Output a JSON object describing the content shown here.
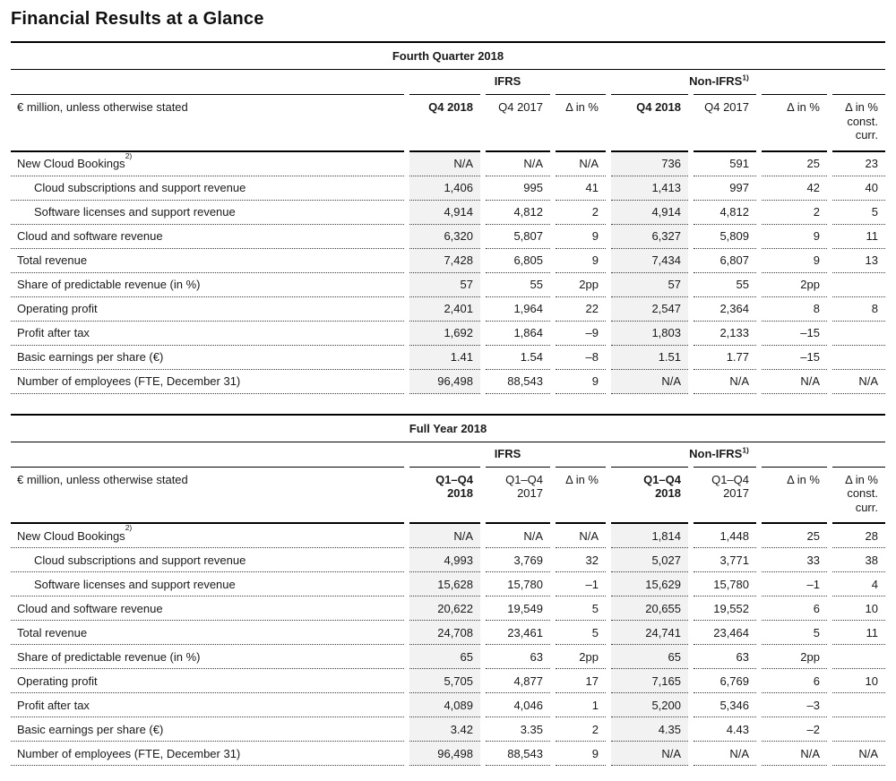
{
  "page_title": "Financial Results at a Glance",
  "colors": {
    "shade": "#f2f2f2",
    "text": "#1a1a1a",
    "rule": "#000000"
  },
  "tables": [
    {
      "period_title": "Fourth Quarter 2018",
      "unit_note": "€ million, unless otherwise stated",
      "group_headers": [
        {
          "label": "IFRS",
          "sup": ""
        },
        {
          "label": "Non-IFRS",
          "sup": "1)"
        }
      ],
      "column_headers": [
        {
          "lines": [
            "Q4 2018"
          ],
          "bold": true
        },
        {
          "lines": [
            "Q4 2017"
          ],
          "bold": false
        },
        {
          "lines": [
            "Δ in %"
          ],
          "bold": false
        },
        {
          "lines": [
            "Q4 2018"
          ],
          "bold": true
        },
        {
          "lines": [
            "Q4 2017"
          ],
          "bold": false
        },
        {
          "lines": [
            "Δ in %"
          ],
          "bold": false
        },
        {
          "lines": [
            "Δ in %",
            "const.",
            "curr."
          ],
          "bold": false
        }
      ],
      "rows": [
        {
          "label": "New Cloud Bookings",
          "sup": "2)",
          "indent": false,
          "values": [
            "N/A",
            "N/A",
            "N/A",
            "736",
            "591",
            "25",
            "23"
          ]
        },
        {
          "label": "Cloud subscriptions and support revenue",
          "sup": "",
          "indent": true,
          "values": [
            "1,406",
            "995",
            "41",
            "1,413",
            "997",
            "42",
            "40"
          ]
        },
        {
          "label": "Software licenses and support revenue",
          "sup": "",
          "indent": true,
          "values": [
            "4,914",
            "4,812",
            "2",
            "4,914",
            "4,812",
            "2",
            "5"
          ]
        },
        {
          "label": "Cloud and software revenue",
          "sup": "",
          "indent": false,
          "values": [
            "6,320",
            "5,807",
            "9",
            "6,327",
            "5,809",
            "9",
            "11"
          ]
        },
        {
          "label": "Total revenue",
          "sup": "",
          "indent": false,
          "values": [
            "7,428",
            "6,805",
            "9",
            "7,434",
            "6,807",
            "9",
            "13"
          ]
        },
        {
          "label": "Share of predictable revenue (in %)",
          "sup": "",
          "indent": false,
          "values": [
            "57",
            "55",
            "2pp",
            "57",
            "55",
            "2pp",
            ""
          ]
        },
        {
          "label": "Operating profit",
          "sup": "",
          "indent": false,
          "values": [
            "2,401",
            "1,964",
            "22",
            "2,547",
            "2,364",
            "8",
            "8"
          ]
        },
        {
          "label": "Profit after tax",
          "sup": "",
          "indent": false,
          "values": [
            "1,692",
            "1,864",
            "–9",
            "1,803",
            "2,133",
            "–15",
            ""
          ]
        },
        {
          "label": "Basic earnings per share (€)",
          "sup": "",
          "indent": false,
          "values": [
            "1.41",
            "1.54",
            "–8",
            "1.51",
            "1.77",
            "–15",
            ""
          ]
        },
        {
          "label": "Number of employees (FTE, December 31)",
          "sup": "",
          "indent": false,
          "values": [
            "96,498",
            "88,543",
            "9",
            "N/A",
            "N/A",
            "N/A",
            "N/A"
          ]
        }
      ]
    },
    {
      "period_title": "Full Year 2018",
      "unit_note": "€ million, unless otherwise stated",
      "group_headers": [
        {
          "label": "IFRS",
          "sup": ""
        },
        {
          "label": "Non-IFRS",
          "sup": "1)"
        }
      ],
      "column_headers": [
        {
          "lines": [
            "Q1–Q4",
            "2018"
          ],
          "bold": true
        },
        {
          "lines": [
            "Q1–Q4",
            "2017"
          ],
          "bold": false
        },
        {
          "lines": [
            "Δ in %"
          ],
          "bold": false
        },
        {
          "lines": [
            "Q1–Q4",
            "2018"
          ],
          "bold": true
        },
        {
          "lines": [
            "Q1–Q4",
            "2017"
          ],
          "bold": false
        },
        {
          "lines": [
            "Δ in %"
          ],
          "bold": false
        },
        {
          "lines": [
            "Δ in %",
            "const.",
            "curr."
          ],
          "bold": false
        }
      ],
      "rows": [
        {
          "label": "New Cloud Bookings",
          "sup": "2)",
          "indent": false,
          "values": [
            "N/A",
            "N/A",
            "N/A",
            "1,814",
            "1,448",
            "25",
            "28"
          ]
        },
        {
          "label": "Cloud subscriptions and support revenue",
          "sup": "",
          "indent": true,
          "values": [
            "4,993",
            "3,769",
            "32",
            "5,027",
            "3,771",
            "33",
            "38"
          ]
        },
        {
          "label": "Software licenses and support revenue",
          "sup": "",
          "indent": true,
          "values": [
            "15,628",
            "15,780",
            "–1",
            "15,629",
            "15,780",
            "–1",
            "4"
          ]
        },
        {
          "label": "Cloud and software revenue",
          "sup": "",
          "indent": false,
          "values": [
            "20,622",
            "19,549",
            "5",
            "20,655",
            "19,552",
            "6",
            "10"
          ]
        },
        {
          "label": "Total revenue",
          "sup": "",
          "indent": false,
          "values": [
            "24,708",
            "23,461",
            "5",
            "24,741",
            "23,464",
            "5",
            "11"
          ]
        },
        {
          "label": "Share of predictable revenue (in %)",
          "sup": "",
          "indent": false,
          "values": [
            "65",
            "63",
            "2pp",
            "65",
            "63",
            "2pp",
            ""
          ]
        },
        {
          "label": "Operating profit",
          "sup": "",
          "indent": false,
          "values": [
            "5,705",
            "4,877",
            "17",
            "7,165",
            "6,769",
            "6",
            "10"
          ]
        },
        {
          "label": "Profit after tax",
          "sup": "",
          "indent": false,
          "values": [
            "4,089",
            "4,046",
            "1",
            "5,200",
            "5,346",
            "–3",
            ""
          ]
        },
        {
          "label": "Basic earnings per share (€)",
          "sup": "",
          "indent": false,
          "values": [
            "3.42",
            "3.35",
            "2",
            "4.35",
            "4.43",
            "–2",
            ""
          ]
        },
        {
          "label": "Number of employees (FTE, December 31)",
          "sup": "",
          "indent": false,
          "values": [
            "96,498",
            "88,543",
            "9",
            "N/A",
            "N/A",
            "N/A",
            "N/A"
          ]
        }
      ]
    }
  ]
}
